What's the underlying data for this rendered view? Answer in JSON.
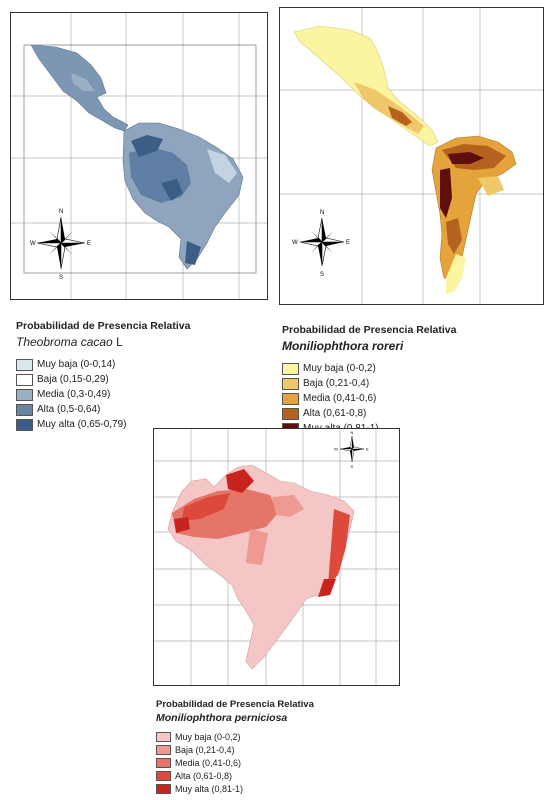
{
  "maps": [
    {
      "legend_title": "Probabilidad de Presencia Relativa",
      "species": "Theobroma cacao",
      "species_suffix": " L",
      "classes": [
        {
          "label": "Muy baja (0-0,14)",
          "color": "#d8e6ee"
        },
        {
          "label": "Baja (0,15-0,29)",
          "color": "#ffffff"
        },
        {
          "label": "Media (0,3-0,49)",
          "color": "#9aaec4"
        },
        {
          "label": "Alta (0,5-0,64)",
          "color": "#6985a6"
        },
        {
          "label": "Muy alta (0,65-0,79)",
          "color": "#3b5d86"
        }
      ],
      "compass": {
        "n": "N",
        "s": "S",
        "e": "E",
        "w": "W"
      }
    },
    {
      "legend_title": "Probabilidad de Presencia Relativa",
      "species": "Moniliophthora roreri",
      "classes": [
        {
          "label": "Muy baja (0-0,2)",
          "color": "#fbf5a2"
        },
        {
          "label": "Baja (0,21-0,4)",
          "color": "#f0c769"
        },
        {
          "label": "Media (0,41-0,6)",
          "color": "#e4a43b"
        },
        {
          "label": "Alta (0,61-0,8)",
          "color": "#b5621f"
        },
        {
          "label": "Muy alta (0,81-1)",
          "color": "#5e0f0c"
        }
      ],
      "compass": {
        "n": "N",
        "s": "S",
        "e": "E",
        "w": "W"
      }
    },
    {
      "legend_title": "Probabilidad de Presencia Relativa",
      "species": "Moniliophthora perniciosa",
      "classes": [
        {
          "label": "Muy baja (0-0,2)",
          "color": "#f5c6c6"
        },
        {
          "label": "Baja (0,21-0,4)",
          "color": "#ee9a93"
        },
        {
          "label": "Media (0,41-0,6)",
          "color": "#e67569"
        },
        {
          "label": "Alta (0,61-0,8)",
          "color": "#dd4a3b"
        },
        {
          "label": "Muy alta (0,81-1)",
          "color": "#c8231d"
        }
      ],
      "compass": {
        "n": "N",
        "s": "S",
        "e": "E",
        "w": "W"
      }
    }
  ]
}
